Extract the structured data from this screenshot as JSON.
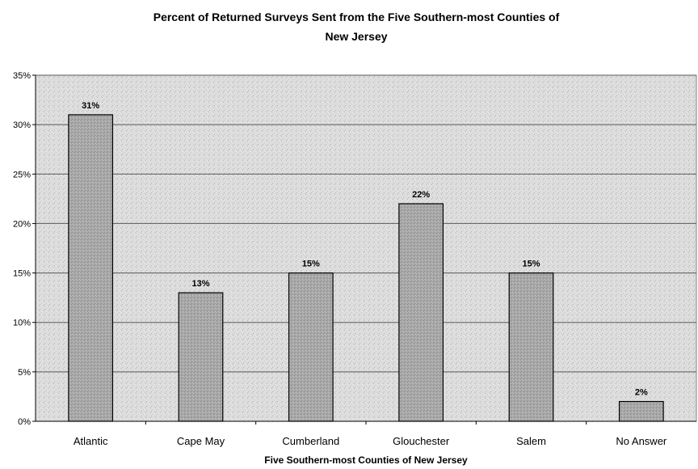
{
  "chart_data": {
    "type": "bar",
    "title": [
      "Percent of Returned Surveys Sent from the Five Southern-most Counties of",
      "New Jersey"
    ],
    "xlabel": "Five Southern-most Counties of New Jersey",
    "ylabel": "",
    "categories": [
      "Atlantic",
      "Cape May",
      "Cumberland",
      "Glouchester",
      "Salem",
      "No Answer"
    ],
    "values": [
      31,
      13,
      15,
      22,
      15,
      2
    ],
    "data_labels": [
      "31%",
      "13%",
      "15%",
      "22%",
      "15%",
      "2%"
    ],
    "ylim": [
      0,
      35
    ],
    "yticks": [
      0,
      5,
      10,
      15,
      20,
      25,
      30,
      35
    ],
    "ytick_labels": [
      "0%",
      "5%",
      "10%",
      "15%",
      "20%",
      "25%",
      "30%",
      "35%"
    ],
    "grid": true,
    "legend": "none",
    "colors": {
      "plot_background": "#dcdcdc",
      "bar_fill": "#a9a9a9",
      "bar_stroke": "#000000",
      "gridline": "#5a5a5a"
    }
  }
}
